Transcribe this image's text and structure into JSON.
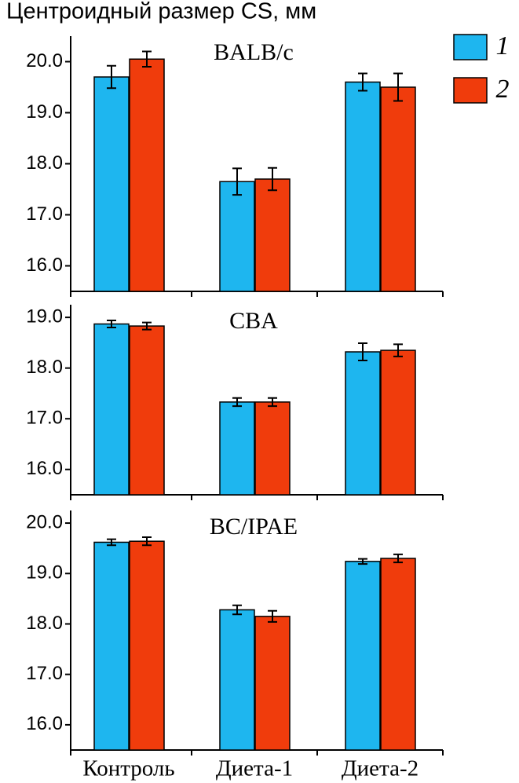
{
  "title": "Центроидный размер CS, мм",
  "chart_data": [
    {
      "type": "bar",
      "title": "BALB/c",
      "series": [
        {
          "name": "1",
          "color": "#1eb6ef",
          "values": [
            19.7,
            17.65,
            19.6
          ],
          "errors": [
            0.22,
            0.26,
            0.17
          ]
        },
        {
          "name": "2",
          "color": "#f03c0c",
          "values": [
            20.05,
            17.7,
            19.5
          ],
          "errors": [
            0.15,
            0.22,
            0.27
          ]
        }
      ],
      "ylim": [
        15.5,
        20.5
      ],
      "yticks": [
        {
          "value": 16,
          "label": "16.0"
        },
        {
          "value": 17,
          "label": "17.0"
        },
        {
          "value": 18,
          "label": "18.0"
        },
        {
          "value": 19,
          "label": "19.0"
        },
        {
          "value": 20,
          "label": "20.0"
        }
      ]
    },
    {
      "type": "bar",
      "title": "CBA",
      "series": [
        {
          "color": "#1eb6ef",
          "values": [
            18.87,
            17.33,
            18.32
          ],
          "errors": [
            0.07,
            0.08,
            0.17
          ]
        },
        {
          "color": "#f03c0c",
          "values": [
            18.83,
            17.33,
            18.35
          ],
          "errors": [
            0.07,
            0.08,
            0.12
          ]
        }
      ],
      "ylim": [
        15.5,
        19.25
      ],
      "yticks": [
        {
          "value": 16,
          "label": "16.0"
        },
        {
          "value": 17,
          "label": "17.0"
        },
        {
          "value": 18,
          "label": "18.0"
        },
        {
          "value": 19,
          "label": "19.0"
        }
      ]
    },
    {
      "type": "bar",
      "title": "BC/IPAE",
      "categories": [
        "Контроль",
        "Диета-1",
        "Диета-2"
      ],
      "series": [
        {
          "color": "#1eb6ef",
          "values": [
            19.62,
            18.28,
            19.24
          ],
          "errors": [
            0.06,
            0.09,
            0.05
          ]
        },
        {
          "color": "#f03c0c",
          "values": [
            19.64,
            18.15,
            19.3
          ],
          "errors": [
            0.08,
            0.11,
            0.08
          ]
        }
      ],
      "ylim": [
        15.5,
        20.25
      ],
      "yticks": [
        {
          "value": 16,
          "label": "16.0"
        },
        {
          "value": 17,
          "label": "17.0"
        },
        {
          "value": 18,
          "label": "18.0"
        },
        {
          "value": 19,
          "label": "19.0"
        },
        {
          "value": 20,
          "label": "20.0"
        }
      ]
    }
  ]
}
